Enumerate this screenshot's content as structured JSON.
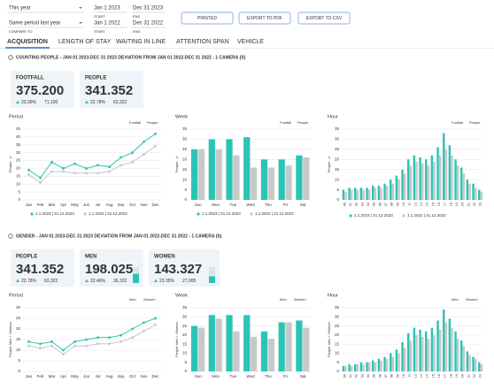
{
  "filters": {
    "period": "This year",
    "compare": "Same period last year",
    "compare_label": "COMPARE TO",
    "start": "Jan 1 2023",
    "end": "Dec 31 2023",
    "compare_start": "Jan 1 2022",
    "compare_end": "Dec 31 2022",
    "start_label": "START",
    "end_label": "END"
  },
  "buttons": [
    "PRINTED",
    "EXPORT TO PDF",
    "EXPORT TO CSV"
  ],
  "tabs": [
    "ACQUISITION",
    "LENGTH OF STAY",
    "WAITING IN LINE",
    "ATTENTION SPAN",
    "VEHICLE"
  ],
  "sections": [
    {
      "title": "COUNTING PEOPLE - JAN 01 2023-DEC 31 2023 DEVIATION FROM JAN 01 2022-DEC 31 2022 - 1 CAMERA (S)",
      "kpis": [
        {
          "label": "FOOTFALL",
          "value": "375.200",
          "change": "23.99%",
          "delta": "71,100"
        },
        {
          "label": "PEOPLE",
          "value": "341.352",
          "change": "22.78%",
          "delta": "63,322"
        }
      ],
      "charts": [
        {
          "type": "line",
          "title": "Period",
          "ylabel": "People - #",
          "toggles": [
            "Footfall",
            "People"
          ],
          "legend": "bottom",
          "categories": [
            "Jan",
            "Feb",
            "Mar",
            "Apr",
            "May",
            "Jun",
            "Jul",
            "Aug",
            "Sep",
            "Oct",
            "Nov",
            "Dec"
          ],
          "series": [
            {
              "name": "1.1.2023 | 31.12.2023",
              "color": "#2bc4b4",
              "values": [
                19,
                14,
                24,
                20,
                23,
                20,
                22,
                21,
                27,
                30,
                37,
                42
              ]
            },
            {
              "name": "1.1.2022 | 31.12.2022",
              "color": "#c8c8c8",
              "values": [
                16,
                11,
                18,
                18,
                17,
                17,
                17,
                18,
                22,
                24,
                29,
                34
              ]
            }
          ],
          "ylim": [
            0,
            45
          ],
          "yticks": [
            0,
            5,
            10,
            15,
            20,
            25,
            30,
            35,
            40,
            45
          ],
          "grid": true
        },
        {
          "type": "bar",
          "title": "Week",
          "ylabel": "People - #",
          "toggles": [
            "Footfall",
            "People"
          ],
          "legend": "bottom",
          "categories": [
            "Sun",
            "Mon",
            "Tue",
            "Wed",
            "Thu",
            "Fri",
            "Sat"
          ],
          "series": [
            {
              "name": "1.1.2023 | 31.12.2023",
              "color": "#2bc4b4",
              "values": [
                25,
                30,
                30,
                31,
                20,
                20,
                22
              ]
            },
            {
              "name": "1.1.2022 | 31.12.2022",
              "color": "#c8c8c8",
              "values": [
                25,
                25,
                22,
                16,
                16,
                17,
                21
              ]
            }
          ],
          "ylim": [
            0,
            35
          ],
          "yticks": [
            0,
            5,
            10,
            15,
            20,
            25,
            30,
            35
          ],
          "grid": true
        },
        {
          "type": "bar",
          "title": "Hour",
          "ylabel": "People - #",
          "toggles": [
            "Footfall",
            "People"
          ],
          "legend": "bottom",
          "categories": [
            "00",
            "01",
            "02",
            "03",
            "04",
            "05",
            "06",
            "07",
            "08",
            "09",
            "10",
            "11",
            "12",
            "13",
            "14",
            "15",
            "16",
            "17",
            "18",
            "19",
            "20",
            "21",
            "22",
            "23"
          ],
          "series": [
            {
              "name": "1.1.2023 | 31.12.2023",
              "color": "#2bc4b4",
              "values": [
                5,
                6,
                6,
                6,
                6,
                7,
                7,
                8,
                10,
                12,
                15,
                20,
                22,
                21,
                20,
                22,
                26,
                33,
                27,
                20,
                16,
                10,
                8,
                5
              ]
            },
            {
              "name": "1.1.2022 | 31.12.2022",
              "color": "#c8c8c8",
              "values": [
                4,
                5,
                5,
                5,
                5,
                6,
                6,
                7,
                8,
                10,
                13,
                17,
                19,
                18,
                17,
                19,
                22,
                25,
                22,
                17,
                13,
                8,
                6,
                4
              ]
            }
          ],
          "ylim": [
            0,
            35
          ],
          "yticks": [
            0,
            5,
            10,
            15,
            20,
            25,
            30,
            35
          ],
          "grid": true
        }
      ]
    },
    {
      "title": "GENDER - JAN 01 2023-DEC 31 2023 DEVIATION FROM JAN 01 2022-DEC 31 2022 - 1 CAMERA (S)",
      "kpis": [
        {
          "label": "PEOPLE",
          "value": "341.352",
          "change": "22.78%",
          "delta": "63,322"
        },
        {
          "label": "MEN",
          "value": "198.025",
          "change": "22.46%",
          "delta": "36,322",
          "share": 58
        },
        {
          "label": "WOMEN",
          "value": "143.327",
          "change": "23.35%",
          "delta": "27,005",
          "share": 42
        }
      ],
      "charts": [
        {
          "type": "line",
          "title": "Period",
          "ylabel": "People Men + Women",
          "legend": "top",
          "categories": [
            "Jan",
            "Feb",
            "Mar",
            "Apr",
            "May",
            "Jun",
            "Jul",
            "Aug",
            "Sep",
            "Oct",
            "Nov",
            "Dec"
          ],
          "series": [
            {
              "name": "Men",
              "color": "#2bc4b4",
              "values": [
                14,
                13,
                14,
                10,
                14,
                15,
                16,
                16,
                17,
                20,
                23,
                25
              ]
            },
            {
              "name": "Women",
              "color": "#c8c8c8",
              "values": [
                12,
                11,
                12,
                8,
                12,
                12,
                13,
                13,
                14,
                16,
                19,
                22
              ]
            }
          ],
          "ylim": [
            0,
            30
          ],
          "yticks": [
            0,
            5,
            10,
            15,
            20,
            25,
            30
          ],
          "grid": true
        },
        {
          "type": "bar",
          "title": "Week",
          "ylabel": "People Men + Women",
          "legend": "top",
          "categories": [
            "Sun",
            "Mon",
            "Tue",
            "Wed",
            "Thu",
            "Fri",
            "Sat"
          ],
          "series": [
            {
              "name": "Men",
              "color": "#2bc4b4",
              "values": [
                25,
                31,
                31,
                31,
                22,
                27,
                28
              ]
            },
            {
              "name": "Women",
              "color": "#c8c8c8",
              "values": [
                24,
                29,
                22,
                19,
                18,
                27,
                24
              ]
            }
          ],
          "ylim": [
            0,
            35
          ],
          "yticks": [
            0,
            5,
            10,
            15,
            20,
            25,
            30,
            35
          ],
          "grid": true
        },
        {
          "type": "bar",
          "title": "Hour",
          "ylabel": "People Men + Women",
          "legend": "top",
          "categories": [
            "00",
            "01",
            "02",
            "03",
            "04",
            "05",
            "06",
            "07",
            "08",
            "09",
            "10",
            "11",
            "12",
            "13",
            "14",
            "15",
            "16",
            "17",
            "18",
            "19",
            "20",
            "21",
            "22",
            "23"
          ],
          "series": [
            {
              "name": "Men",
              "color": "#2bc4b4",
              "values": [
                3,
                4,
                4,
                5,
                5,
                6,
                7,
                8,
                10,
                12,
                16,
                21,
                24,
                23,
                22,
                24,
                28,
                34,
                29,
                22,
                17,
                11,
                8,
                5
              ]
            },
            {
              "name": "Women",
              "color": "#c8c8c8",
              "values": [
                3,
                3,
                4,
                4,
                5,
                5,
                6,
                7,
                8,
                10,
                13,
                17,
                20,
                19,
                18,
                20,
                23,
                27,
                24,
                18,
                14,
                9,
                7,
                4
              ]
            }
          ],
          "ylim": [
            0,
            35
          ],
          "yticks": [
            0,
            5,
            10,
            15,
            20,
            25,
            30,
            35
          ],
          "grid": true
        }
      ]
    }
  ]
}
